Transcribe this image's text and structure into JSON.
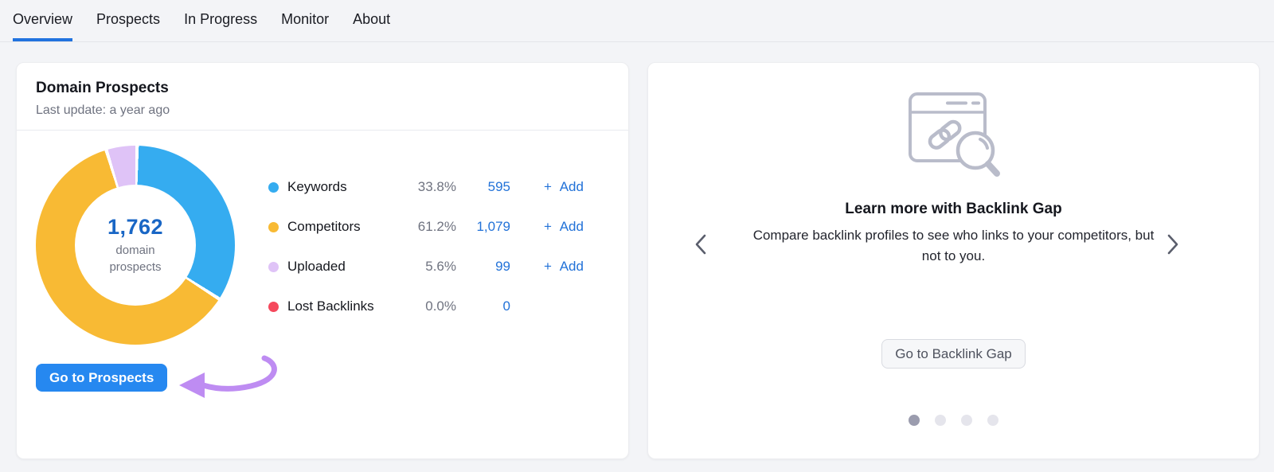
{
  "nav": {
    "tabs": [
      {
        "label": "Overview",
        "active": true
      },
      {
        "label": "Prospects",
        "active": false
      },
      {
        "label": "In Progress",
        "active": false
      },
      {
        "label": "Monitor",
        "active": false
      },
      {
        "label": "About",
        "active": false
      }
    ]
  },
  "domain_prospects": {
    "title": "Domain Prospects",
    "last_update": "Last update: a year ago",
    "center_value": "1,762",
    "center_label_line1": "domain",
    "center_label_line2": "prospects",
    "legend": [
      {
        "label": "Keywords",
        "percent": "33.8%",
        "value": "595",
        "add": "+ Add",
        "color": "#35ACF0"
      },
      {
        "label": "Competitors",
        "percent": "61.2%",
        "value": "1,079",
        "add": "+ Add",
        "color": "#F8BA34"
      },
      {
        "label": "Uploaded",
        "percent": "5.6%",
        "value": "99",
        "add": "+ Add",
        "color": "#DFC3F7"
      },
      {
        "label": "Lost Backlinks",
        "percent": "0.0%",
        "value": "0",
        "add": null,
        "color": "#F5485C"
      }
    ],
    "cta": "Go to Prospects"
  },
  "backlink_gap": {
    "title": "Learn more with Backlink Gap",
    "description": "Compare backlink profiles to see who links to your competitors, but not to you.",
    "cta": "Go to Backlink Gap",
    "carousel": {
      "dots": 4,
      "active_index": 0
    }
  },
  "chart_data": {
    "type": "pie",
    "title": "Domain Prospects",
    "center_total": 1762,
    "center_label": "domain prospects",
    "series": [
      {
        "name": "Keywords",
        "percent": 33.8,
        "value": 595,
        "color": "#35ACF0"
      },
      {
        "name": "Competitors",
        "percent": 61.2,
        "value": 1079,
        "color": "#F8BA34"
      },
      {
        "name": "Uploaded",
        "percent": 5.6,
        "value": 99,
        "color": "#DFC3F7"
      },
      {
        "name": "Lost Backlinks",
        "percent": 0.0,
        "value": 0,
        "color": "#F5485C"
      }
    ],
    "start_angle_deg": 0,
    "direction": "clockwise",
    "donut_hole_ratio": 0.6,
    "legend_position": "right"
  },
  "colors": {
    "accent_blue": "#2688F0",
    "link_blue": "#2272D8",
    "tab_underline": "#2173DF",
    "annotation_purple": "#BE8CF2",
    "dot_active": "#9B9CAE",
    "dot_inactive": "#E5E5EC"
  }
}
